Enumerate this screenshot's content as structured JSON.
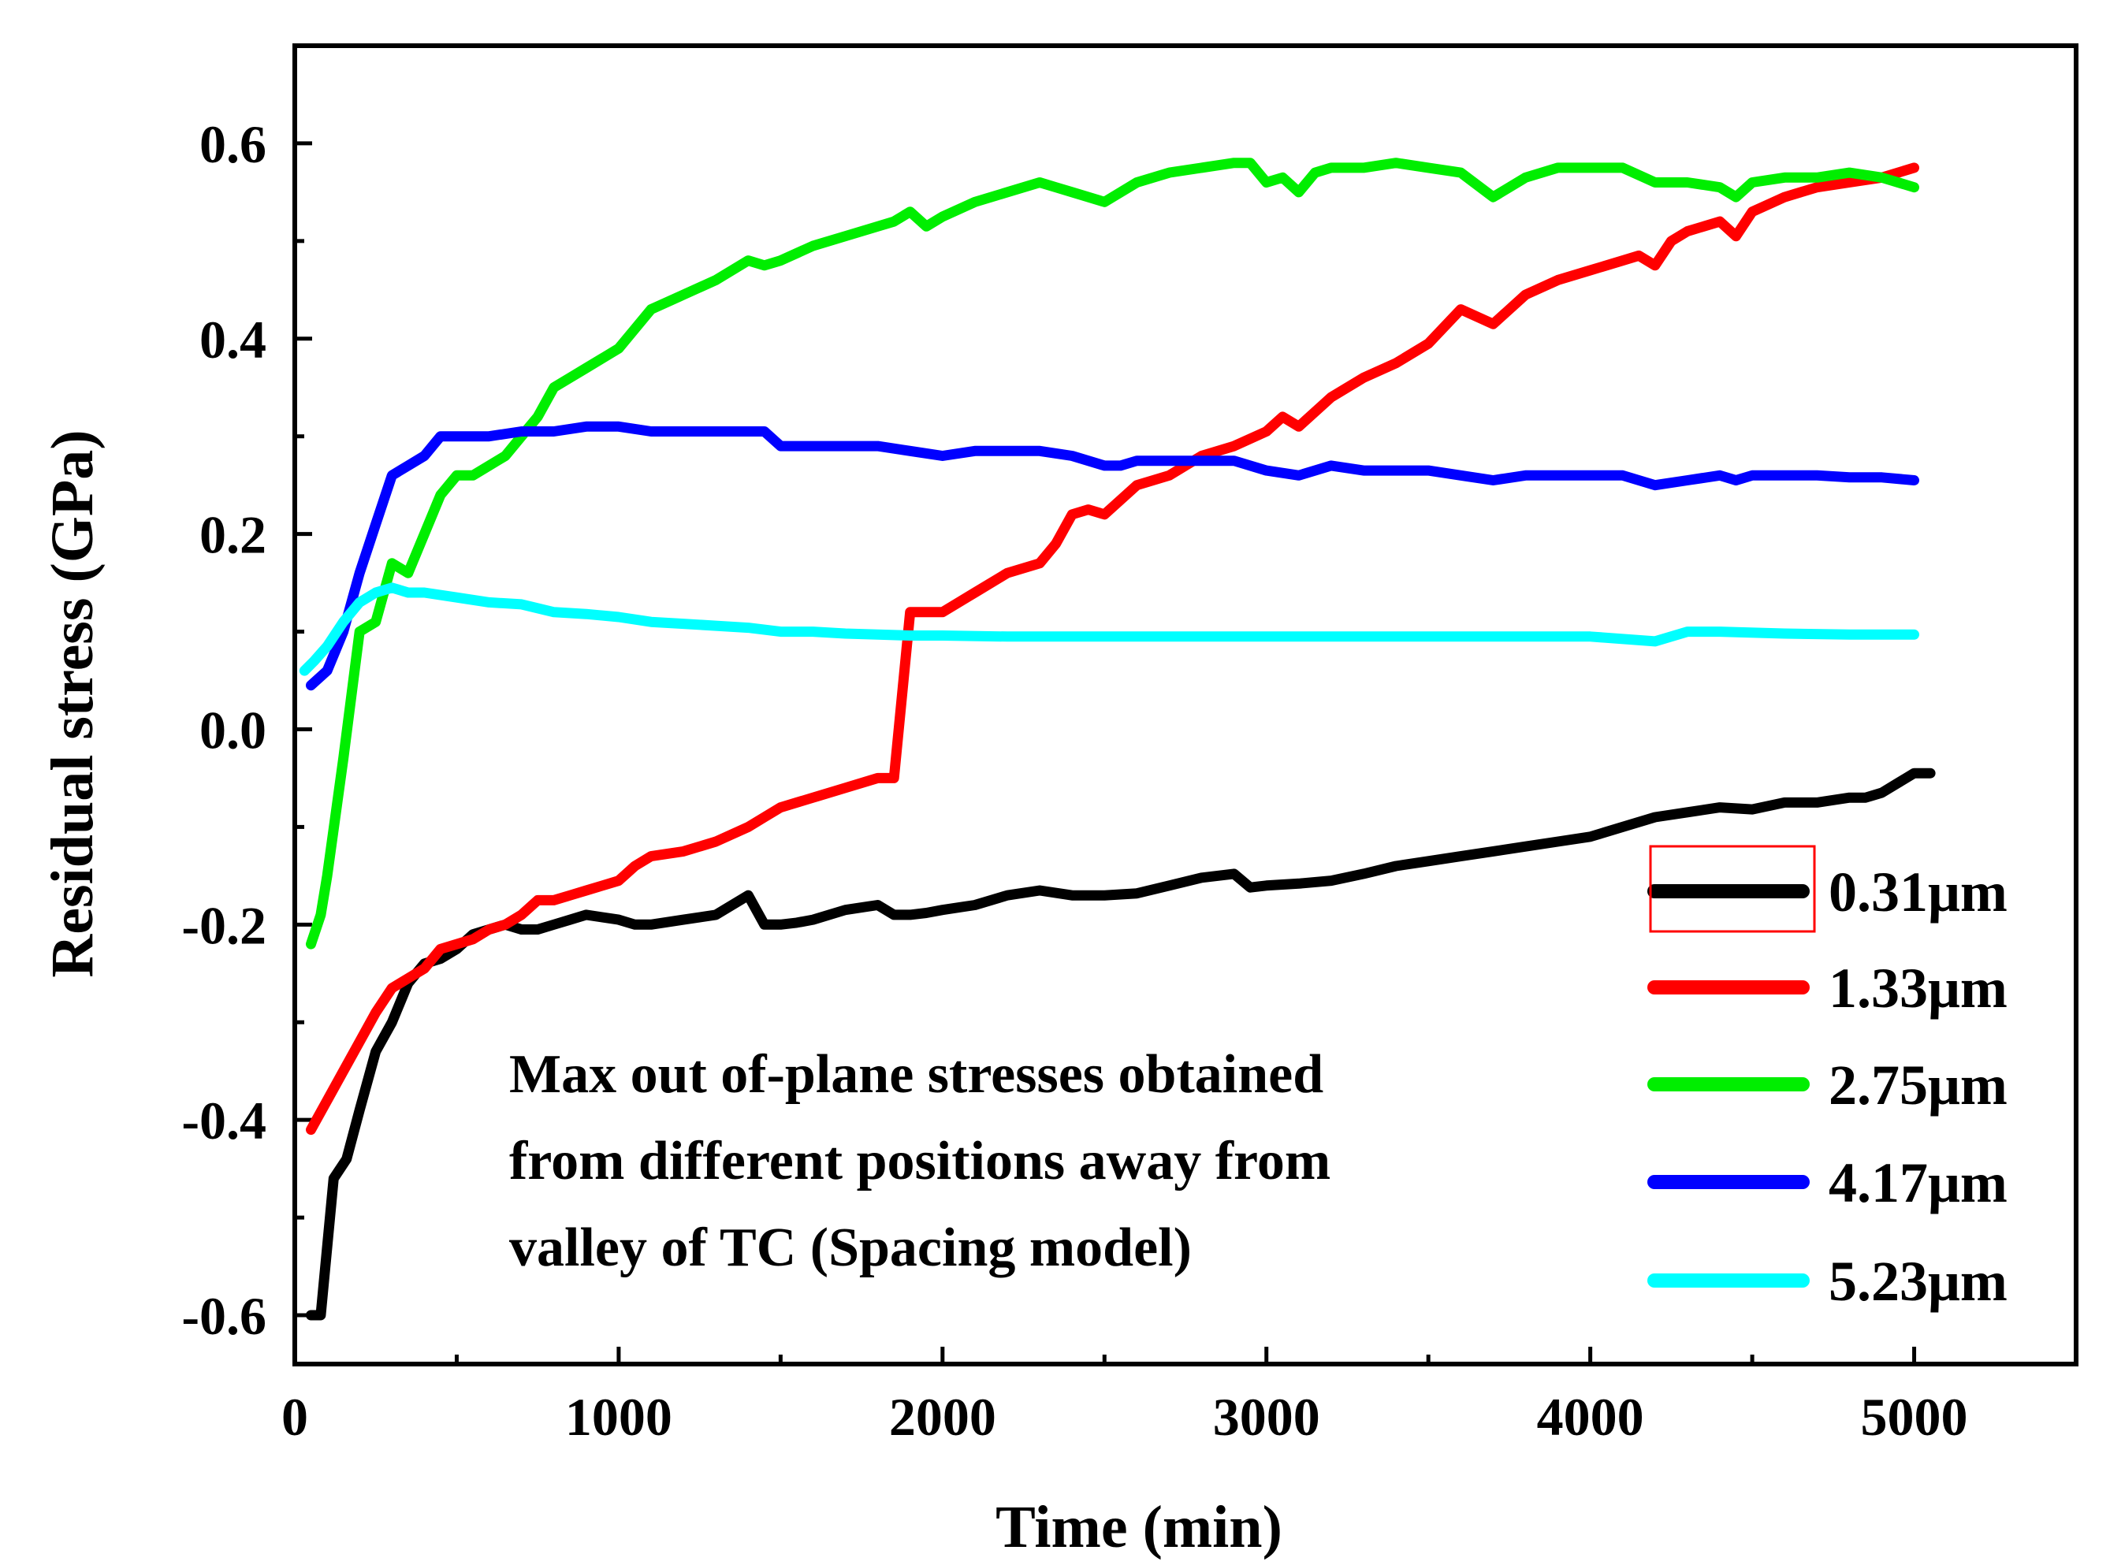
{
  "chart_data": {
    "type": "line",
    "title": "",
    "xlabel": "Time (min)",
    "ylabel": "Residual stress (GPa)",
    "xlim": [
      0,
      5500
    ],
    "ylim": [
      -0.65,
      0.7
    ],
    "x_ticks": [
      0,
      1000,
      2000,
      3000,
      4000,
      5000
    ],
    "x_tick_labels": [
      "0",
      "1000",
      "2000",
      "3000",
      "4000",
      "5000"
    ],
    "y_ticks": [
      -0.6,
      -0.4,
      -0.2,
      0.0,
      0.2,
      0.4,
      0.6
    ],
    "y_tick_labels": [
      "-0.6",
      "-0.4",
      "-0.2",
      "0.0",
      "0.2",
      "0.4",
      "0.6"
    ],
    "grid": false,
    "legend_position": "bottom-right",
    "annotation": [
      "Max out of-plane stresses obtained",
      "from different positions away from",
      "valley of TC (Spacing model)"
    ],
    "series": [
      {
        "name": "0.31μm",
        "color": "#000000",
        "x": [
          50,
          80,
          120,
          160,
          200,
          250,
          300,
          350,
          400,
          450,
          500,
          550,
          600,
          650,
          700,
          750,
          800,
          850,
          900,
          1000,
          1050,
          1100,
          1200,
          1300,
          1400,
          1450,
          1500,
          1550,
          1600,
          1700,
          1800,
          1850,
          1900,
          1950,
          2000,
          2100,
          2200,
          2300,
          2400,
          2500,
          2600,
          2700,
          2800,
          2900,
          2950,
          3000,
          3100,
          3200,
          3300,
          3400,
          3500,
          3600,
          3700,
          3800,
          3900,
          4000,
          4100,
          4200,
          4300,
          4400,
          4500,
          4600,
          4700,
          4800,
          4850,
          4900,
          4950,
          5000,
          5050
        ],
        "values": [
          -0.6,
          -0.6,
          -0.46,
          -0.44,
          -0.39,
          -0.33,
          -0.3,
          -0.26,
          -0.24,
          -0.235,
          -0.225,
          -0.21,
          -0.205,
          -0.2,
          -0.205,
          -0.205,
          -0.2,
          -0.195,
          -0.19,
          -0.195,
          -0.2,
          -0.2,
          -0.195,
          -0.19,
          -0.17,
          -0.2,
          -0.2,
          -0.198,
          -0.195,
          -0.185,
          -0.18,
          -0.19,
          -0.19,
          -0.188,
          -0.185,
          -0.18,
          -0.17,
          -0.165,
          -0.17,
          -0.17,
          -0.168,
          -0.16,
          -0.152,
          -0.148,
          -0.162,
          -0.16,
          -0.158,
          -0.155,
          -0.148,
          -0.14,
          -0.135,
          -0.13,
          -0.125,
          -0.12,
          -0.115,
          -0.11,
          -0.1,
          -0.09,
          -0.085,
          -0.08,
          -0.082,
          -0.075,
          -0.075,
          -0.07,
          -0.07,
          -0.065,
          -0.055,
          -0.045,
          -0.045
        ]
      },
      {
        "name": "1.33μm",
        "color": "#ff0000",
        "x": [
          50,
          100,
          150,
          200,
          250,
          300,
          350,
          400,
          450,
          500,
          550,
          600,
          650,
          700,
          750,
          800,
          850,
          900,
          950,
          1000,
          1050,
          1100,
          1200,
          1300,
          1400,
          1450,
          1500,
          1550,
          1600,
          1700,
          1800,
          1850,
          1900,
          1950,
          2000,
          2100,
          2200,
          2300,
          2350,
          2400,
          2450,
          2500,
          2600,
          2700,
          2800,
          2900,
          3000,
          3050,
          3100,
          3200,
          3300,
          3400,
          3500,
          3600,
          3700,
          3800,
          3900,
          4000,
          4100,
          4150,
          4200,
          4250,
          4300,
          4400,
          4450,
          4500,
          4600,
          4700,
          4800,
          4900,
          5000
        ],
        "values": [
          -0.41,
          -0.38,
          -0.35,
          -0.32,
          -0.29,
          -0.265,
          -0.255,
          -0.245,
          -0.225,
          -0.22,
          -0.215,
          -0.205,
          -0.2,
          -0.19,
          -0.175,
          -0.175,
          -0.17,
          -0.165,
          -0.16,
          -0.155,
          -0.14,
          -0.13,
          -0.125,
          -0.115,
          -0.1,
          -0.09,
          -0.08,
          -0.075,
          -0.07,
          -0.06,
          -0.05,
          -0.05,
          0.12,
          0.12,
          0.12,
          0.14,
          0.16,
          0.17,
          0.19,
          0.22,
          0.225,
          0.22,
          0.25,
          0.26,
          0.28,
          0.29,
          0.305,
          0.32,
          0.31,
          0.34,
          0.36,
          0.375,
          0.395,
          0.43,
          0.415,
          0.445,
          0.46,
          0.47,
          0.48,
          0.485,
          0.475,
          0.5,
          0.51,
          0.52,
          0.505,
          0.53,
          0.545,
          0.555,
          0.56,
          0.565,
          0.575
        ]
      },
      {
        "name": "2.75μm",
        "color": "#00ee00",
        "x": [
          50,
          80,
          100,
          150,
          200,
          250,
          300,
          350,
          400,
          450,
          500,
          550,
          600,
          650,
          700,
          750,
          800,
          850,
          900,
          950,
          1000,
          1050,
          1100,
          1200,
          1300,
          1400,
          1450,
          1500,
          1600,
          1700,
          1800,
          1850,
          1900,
          1950,
          2000,
          2100,
          2200,
          2300,
          2350,
          2400,
          2500,
          2600,
          2700,
          2800,
          2900,
          2950,
          3000,
          3050,
          3100,
          3150,
          3200,
          3300,
          3400,
          3500,
          3600,
          3700,
          3800,
          3900,
          4000,
          4100,
          4200,
          4300,
          4400,
          4450,
          4500,
          4600,
          4700,
          4800,
          4900,
          5000
        ],
        "values": [
          -0.22,
          -0.19,
          -0.15,
          -0.03,
          0.1,
          0.11,
          0.17,
          0.16,
          0.2,
          0.24,
          0.26,
          0.26,
          0.27,
          0.28,
          0.3,
          0.32,
          0.35,
          0.36,
          0.37,
          0.38,
          0.39,
          0.41,
          0.43,
          0.445,
          0.46,
          0.48,
          0.475,
          0.48,
          0.495,
          0.505,
          0.515,
          0.52,
          0.53,
          0.515,
          0.525,
          0.54,
          0.55,
          0.56,
          0.555,
          0.55,
          0.54,
          0.56,
          0.57,
          0.575,
          0.58,
          0.58,
          0.56,
          0.565,
          0.55,
          0.57,
          0.575,
          0.575,
          0.58,
          0.575,
          0.57,
          0.545,
          0.565,
          0.575,
          0.575,
          0.575,
          0.56,
          0.56,
          0.555,
          0.545,
          0.56,
          0.565,
          0.565,
          0.57,
          0.565,
          0.555
        ]
      },
      {
        "name": "4.17μm",
        "color": "#0000ff",
        "x": [
          50,
          100,
          150,
          200,
          250,
          300,
          350,
          400,
          450,
          500,
          550,
          600,
          700,
          800,
          900,
          1000,
          1100,
          1200,
          1300,
          1400,
          1450,
          1500,
          1600,
          1700,
          1800,
          1900,
          2000,
          2100,
          2200,
          2300,
          2400,
          2500,
          2550,
          2600,
          2700,
          2800,
          2900,
          3000,
          3100,
          3200,
          3300,
          3400,
          3500,
          3600,
          3700,
          3800,
          3900,
          4000,
          4100,
          4200,
          4300,
          4400,
          4450,
          4500,
          4600,
          4700,
          4800,
          4900,
          5000
        ],
        "values": [
          0.045,
          0.06,
          0.1,
          0.16,
          0.21,
          0.26,
          0.27,
          0.28,
          0.3,
          0.3,
          0.3,
          0.3,
          0.305,
          0.305,
          0.31,
          0.31,
          0.305,
          0.305,
          0.305,
          0.305,
          0.305,
          0.29,
          0.29,
          0.29,
          0.29,
          0.285,
          0.28,
          0.285,
          0.285,
          0.285,
          0.28,
          0.27,
          0.27,
          0.275,
          0.275,
          0.275,
          0.275,
          0.265,
          0.26,
          0.27,
          0.265,
          0.265,
          0.265,
          0.26,
          0.255,
          0.26,
          0.26,
          0.26,
          0.26,
          0.25,
          0.255,
          0.26,
          0.255,
          0.26,
          0.26,
          0.26,
          0.258,
          0.258,
          0.255
        ]
      },
      {
        "name": "5.23μm",
        "color": "#00ffff",
        "x": [
          30,
          60,
          100,
          150,
          200,
          250,
          300,
          350,
          400,
          500,
          600,
          700,
          800,
          900,
          1000,
          1100,
          1200,
          1300,
          1400,
          1500,
          1600,
          1700,
          1800,
          1900,
          2000,
          2200,
          2400,
          2600,
          2800,
          3000,
          3200,
          3400,
          3600,
          3800,
          4000,
          4200,
          4300,
          4400,
          4600,
          4800,
          5000
        ],
        "values": [
          0.06,
          0.07,
          0.085,
          0.11,
          0.13,
          0.14,
          0.145,
          0.14,
          0.14,
          0.135,
          0.13,
          0.128,
          0.12,
          0.118,
          0.115,
          0.11,
          0.108,
          0.106,
          0.104,
          0.1,
          0.1,
          0.098,
          0.097,
          0.096,
          0.096,
          0.095,
          0.095,
          0.095,
          0.095,
          0.095,
          0.095,
          0.095,
          0.095,
          0.095,
          0.095,
          0.09,
          0.1,
          0.1,
          0.098,
          0.097,
          0.097
        ]
      }
    ]
  }
}
